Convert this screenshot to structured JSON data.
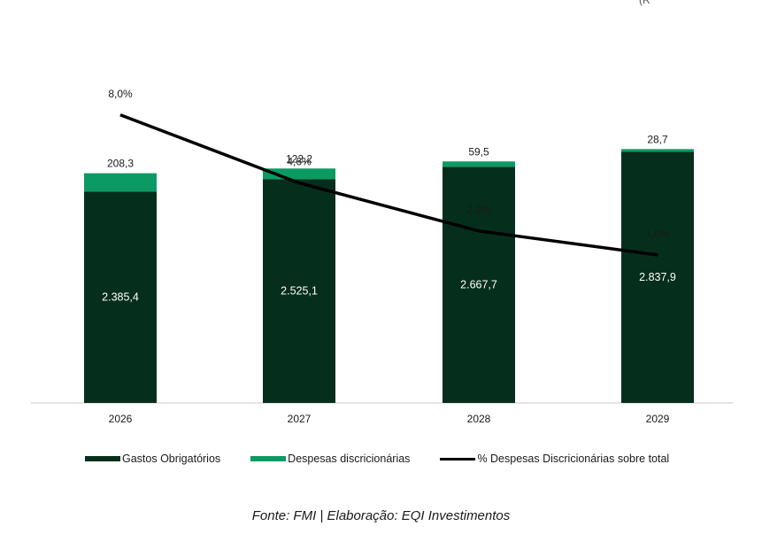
{
  "chart_data": {
    "type": "bar",
    "stacked": true,
    "categories": [
      "2026",
      "2027",
      "2028",
      "2029"
    ],
    "series": [
      {
        "name": "Gastos Obrigatórios",
        "values": [
          2385.4,
          2525.1,
          2667.7,
          2837.9
        ],
        "labels": [
          "2.385,4",
          "2.525,1",
          "2.667,7",
          "2.837,9"
        ],
        "color": "#062e1c"
      },
      {
        "name": "Despesas discricionárias",
        "values": [
          208.3,
          122.2,
          59.5,
          28.7
        ],
        "labels": [
          "208,3",
          "122,2",
          "59,5",
          "28,7"
        ],
        "color": "#0b9a63"
      }
    ],
    "line_series": {
      "name": "% Despesas Discricionárias sobre total",
      "values": [
        8.0,
        4.6,
        2.2,
        1.0
      ],
      "labels": [
        "8,0%",
        "4,6%",
        "2,2%",
        "1,0%"
      ],
      "color": "#000000"
    },
    "ylim": [
      0,
      4200
    ],
    "line_ylim": [
      -6.4,
      12.2
    ],
    "legend_position": "bottom",
    "corner_text": "(R"
  },
  "source": "Fonte: FMI | Elaboração: EQI Investimentos"
}
